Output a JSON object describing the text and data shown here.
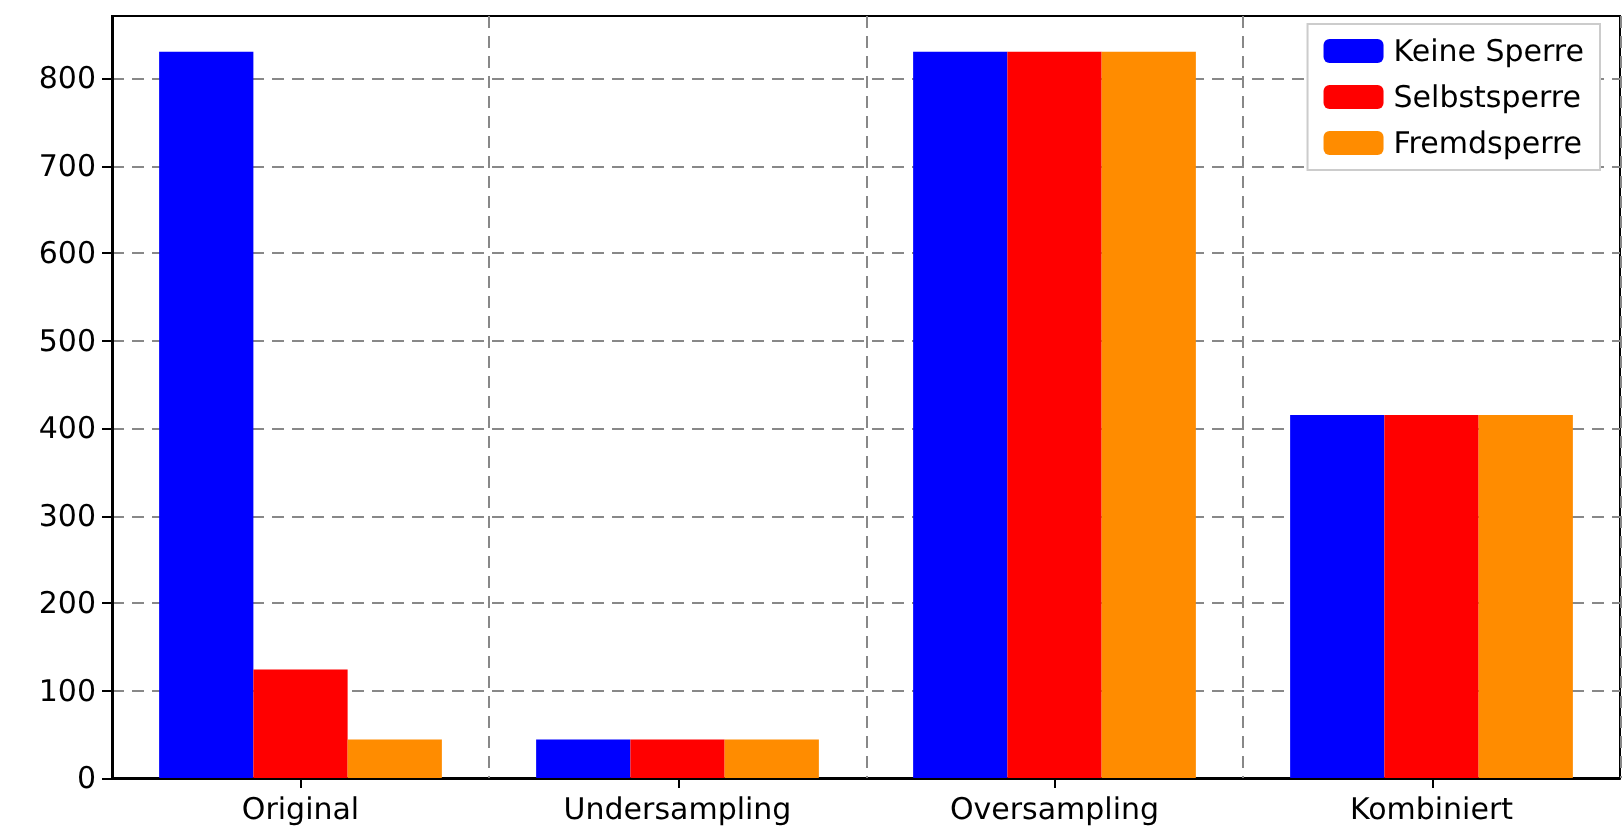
{
  "chart_data": {
    "type": "bar",
    "categories": [
      "Original",
      "Undersampling",
      "Oversampling",
      "Kombiniert"
    ],
    "series": [
      {
        "name": "Keine Sperre",
        "color": "#0000ff",
        "values": [
          830,
          44,
          830,
          415
        ]
      },
      {
        "name": "Selbstsperre",
        "color": "#ff0000",
        "values": [
          124,
          44,
          830,
          415
        ]
      },
      {
        "name": "Fremdsperre",
        "color": "#ff8c00",
        "values": [
          44,
          44,
          830,
          415
        ]
      }
    ],
    "ylim": [
      0,
      871
    ],
    "yticks": [
      0,
      100,
      200,
      300,
      400,
      500,
      600,
      700,
      800
    ],
    "grid": true,
    "legend": "top right"
  }
}
